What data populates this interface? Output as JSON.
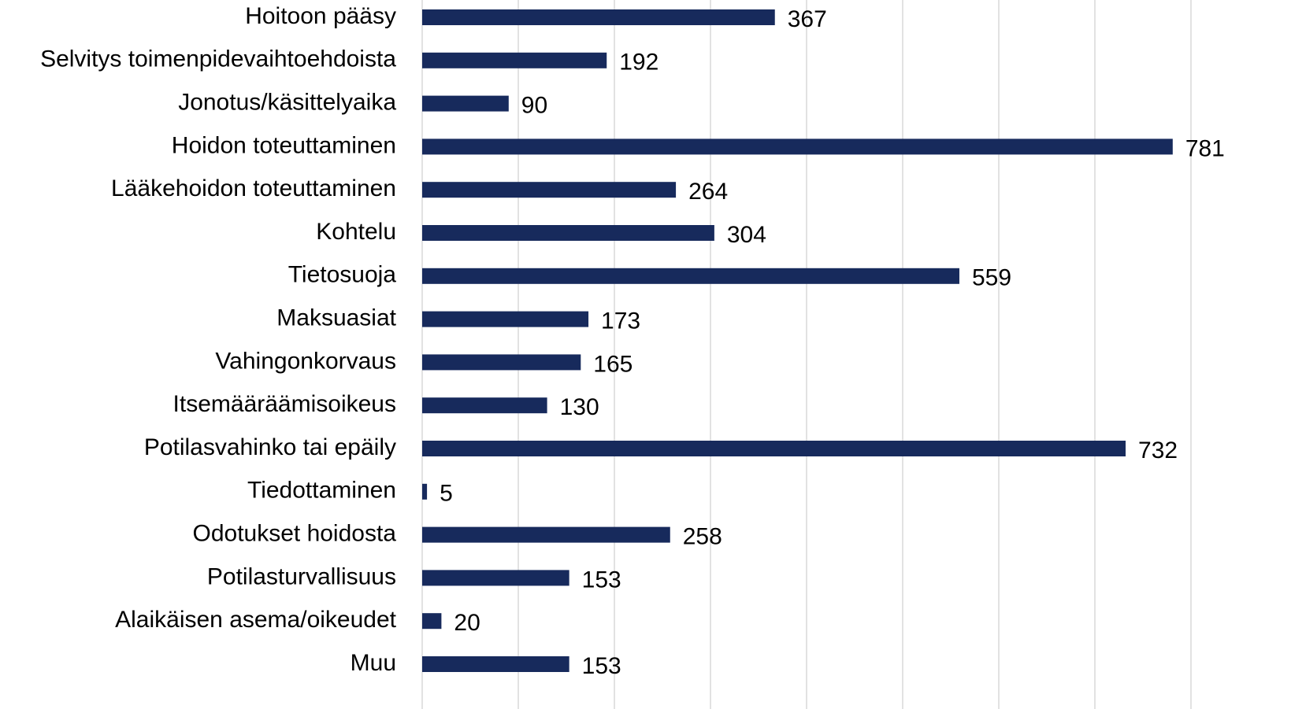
{
  "chart_data": {
    "type": "barh",
    "categories": [
      "Hoitoon pääsy",
      "Selvitys toimenpidevaihtoehdoista",
      "Jonotus/käsittelyaika",
      "Hoidon toteuttaminen",
      "Lääkehoidon toteuttaminen",
      "Kohtelu",
      "Tietosuoja",
      "Maksuasiat",
      "Vahingonkorvaus",
      "Itsemääräämisoikeus",
      "Potilasvahinko tai epäily",
      "Tiedottaminen",
      "Odotukset hoidosta",
      "Potilasturvallisuus",
      "Alaikäisen asema/oikeudet",
      "Muu"
    ],
    "values": [
      367,
      192,
      90,
      781,
      264,
      304,
      559,
      173,
      165,
      130,
      732,
      5,
      258,
      153,
      20,
      153
    ],
    "color": "#172a5c",
    "xlim": [
      0,
      800
    ],
    "xticks": [
      0,
      100,
      200,
      300,
      400,
      500,
      600,
      700,
      800
    ],
    "grid": true
  }
}
